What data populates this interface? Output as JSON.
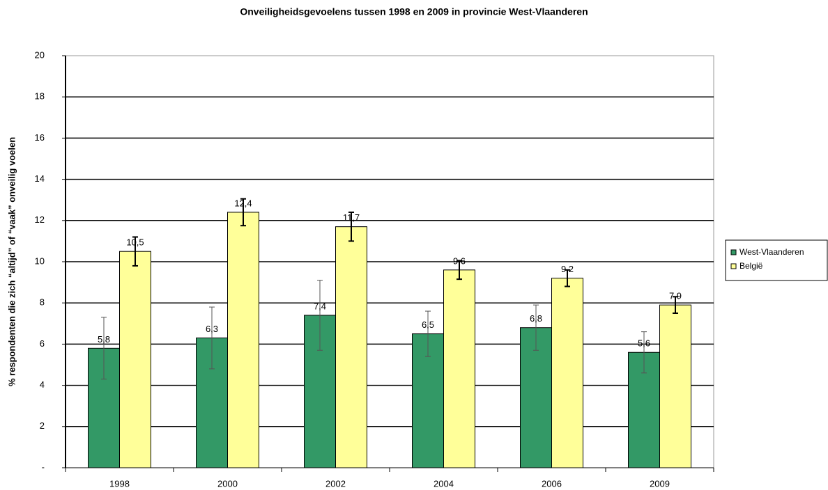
{
  "chart_data": {
    "type": "bar",
    "title": "Onveiligheidsgevoelens tussen 1998 en 2009 in provincie West-Vlaanderen",
    "y_label": "% respondenten die zich “altijd” of “vaak” onveilig voelen",
    "categories": [
      "1998",
      "2000",
      "2002",
      "2004",
      "2006",
      "2009"
    ],
    "series": [
      {
        "name": "West-Vlaanderen",
        "color": "#339966",
        "values": [
          5.8,
          6.3,
          7.4,
          6.5,
          6.8,
          5.6
        ],
        "value_labels": [
          "5,8",
          "6,3",
          "7,4",
          "6,5",
          "6,8",
          "5,6"
        ],
        "errors": [
          1.5,
          1.5,
          1.7,
          1.1,
          1.1,
          1.0
        ]
      },
      {
        "name": "België",
        "color": "#ffff99",
        "values": [
          10.5,
          12.4,
          11.7,
          9.6,
          9.2,
          7.9
        ],
        "value_labels": [
          "10,5",
          "12,4",
          "11,7",
          "9,6",
          "9,2",
          "7,9"
        ],
        "errors": [
          0.7,
          0.65,
          0.7,
          0.45,
          0.4,
          0.4
        ]
      }
    ],
    "ylim": [
      0,
      20
    ],
    "yticks": [
      {
        "value": 0,
        "label": "-"
      },
      2,
      4,
      6,
      8,
      10,
      12,
      14,
      16,
      18,
      20
    ],
    "grid": true,
    "legend": "right"
  }
}
